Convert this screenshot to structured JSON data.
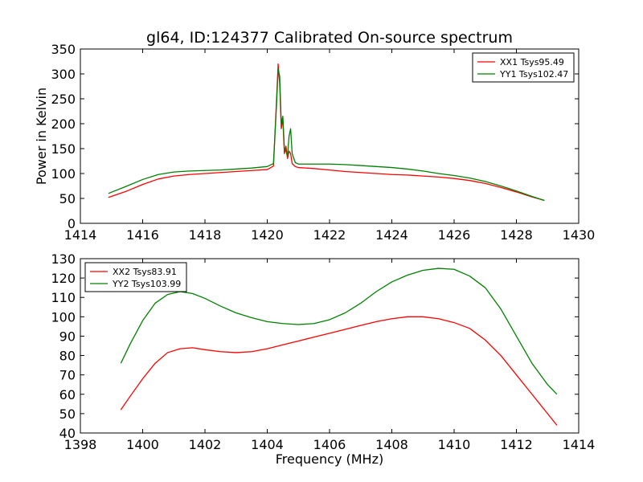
{
  "figure": {
    "title": "gl64, ID:124377 Calibrated On-source spectrum"
  },
  "chart_data": [
    {
      "type": "line",
      "title": "gl64, ID:124377 Calibrated On-source spectrum",
      "xlabel": "",
      "ylabel": "Power in Kelvin",
      "xlim": [
        1414,
        1430
      ],
      "ylim": [
        0,
        350
      ],
      "xticks": [
        1414,
        1416,
        1418,
        1420,
        1422,
        1424,
        1426,
        1428,
        1430
      ],
      "yticks": [
        0,
        50,
        100,
        150,
        200,
        250,
        300,
        350
      ],
      "grid": false,
      "legend_position": "top-right",
      "series": [
        {
          "name": "XX1 Tsys95.49",
          "color": "#ff0000",
          "x": [
            1414.9,
            1415.5,
            1416.0,
            1416.5,
            1417.0,
            1417.5,
            1418.0,
            1418.5,
            1419.0,
            1419.5,
            1420.0,
            1420.2,
            1420.3,
            1420.35,
            1420.4,
            1420.45,
            1420.5,
            1420.55,
            1420.6,
            1420.65,
            1420.7,
            1420.75,
            1420.8,
            1420.9,
            1421.0,
            1421.5,
            1422.0,
            1422.5,
            1423.0,
            1423.5,
            1424.0,
            1424.5,
            1425.0,
            1425.5,
            1426.0,
            1426.5,
            1427.0,
            1427.5,
            1428.0,
            1428.5,
            1428.9
          ],
          "y": [
            52,
            65,
            78,
            89,
            95,
            98,
            100,
            102,
            104,
            106,
            108,
            115,
            250,
            320,
            280,
            190,
            210,
            140,
            155,
            130,
            145,
            140,
            120,
            114,
            112,
            110,
            107,
            104,
            102,
            100,
            98,
            97,
            95,
            93,
            90,
            86,
            80,
            72,
            63,
            53,
            46
          ]
        },
        {
          "name": "YY1 Tsys102.47",
          "color": "#008000",
          "x": [
            1414.9,
            1415.5,
            1416.0,
            1416.5,
            1417.0,
            1417.5,
            1418.0,
            1418.5,
            1419.0,
            1419.5,
            1420.0,
            1420.2,
            1420.3,
            1420.35,
            1420.4,
            1420.45,
            1420.5,
            1420.55,
            1420.6,
            1420.65,
            1420.7,
            1420.75,
            1420.8,
            1420.9,
            1421.0,
            1421.5,
            1422.0,
            1422.5,
            1423.0,
            1423.5,
            1424.0,
            1424.5,
            1425.0,
            1425.5,
            1426.0,
            1426.5,
            1427.0,
            1427.5,
            1428.0,
            1428.5,
            1428.9
          ],
          "y": [
            60,
            75,
            88,
            98,
            103,
            105,
            106,
            107,
            109,
            111,
            114,
            120,
            240,
            310,
            295,
            200,
            215,
            150,
            145,
            135,
            175,
            190,
            140,
            122,
            119,
            119,
            119,
            118,
            116,
            114,
            112,
            109,
            105,
            100,
            96,
            91,
            84,
            75,
            65,
            54,
            46
          ]
        }
      ]
    },
    {
      "type": "line",
      "title": "",
      "xlabel": "Frequency (MHz)",
      "ylabel": "",
      "xlim": [
        1398,
        1414
      ],
      "ylim": [
        40,
        130
      ],
      "xticks": [
        1398,
        1400,
        1402,
        1404,
        1406,
        1408,
        1410,
        1412,
        1414
      ],
      "yticks": [
        40,
        50,
        60,
        70,
        80,
        90,
        100,
        110,
        120,
        130
      ],
      "grid": false,
      "legend_position": "top-left",
      "series": [
        {
          "name": "XX2 Tsys83.91",
          "color": "#ff0000",
          "x": [
            1399.3,
            1399.6,
            1400.0,
            1400.4,
            1400.8,
            1401.2,
            1401.6,
            1402.0,
            1402.5,
            1403.0,
            1403.5,
            1404.0,
            1404.5,
            1405.0,
            1405.5,
            1406.0,
            1406.5,
            1407.0,
            1407.5,
            1408.0,
            1408.5,
            1409.0,
            1409.5,
            1410.0,
            1410.5,
            1411.0,
            1411.5,
            1412.0,
            1412.5,
            1413.0,
            1413.3
          ],
          "y": [
            52,
            59,
            68,
            76,
            81.5,
            83.5,
            84,
            83,
            82,
            81.5,
            82,
            83.5,
            85.5,
            87.5,
            89.5,
            91.5,
            93.5,
            95.5,
            97.5,
            99,
            100,
            100,
            99,
            97,
            94,
            88,
            80,
            70,
            60,
            50,
            44
          ]
        },
        {
          "name": "YY2 Tsys103.99",
          "color": "#008000",
          "x": [
            1399.3,
            1399.6,
            1400.0,
            1400.4,
            1400.8,
            1401.2,
            1401.6,
            1402.0,
            1402.5,
            1403.0,
            1403.5,
            1404.0,
            1404.5,
            1405.0,
            1405.5,
            1406.0,
            1406.5,
            1407.0,
            1407.5,
            1408.0,
            1408.5,
            1409.0,
            1409.5,
            1410.0,
            1410.5,
            1411.0,
            1411.5,
            1412.0,
            1412.5,
            1413.0,
            1413.3
          ],
          "y": [
            76,
            86,
            98,
            107,
            111.5,
            113,
            112,
            109.5,
            105.5,
            102,
            99.5,
            97.5,
            96.5,
            96,
            96.5,
            98.5,
            102,
            107,
            113,
            118,
            121.5,
            124,
            125,
            124.5,
            121,
            115,
            104,
            90,
            76,
            65,
            60
          ]
        }
      ]
    }
  ]
}
